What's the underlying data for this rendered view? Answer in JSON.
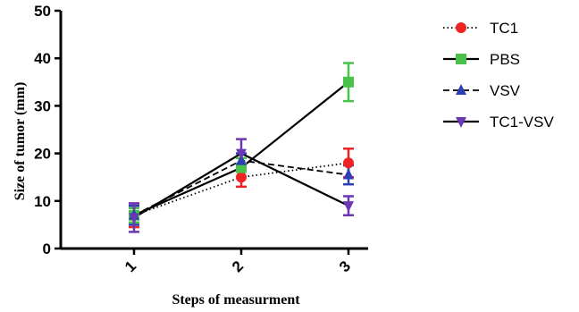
{
  "chart_data": {
    "type": "line",
    "title": "",
    "xlabel": "Steps of measurment",
    "ylabel": "Size of tumor (mm)",
    "categories": [
      "1",
      "2",
      "3"
    ],
    "ylim": [
      0,
      50
    ],
    "yticks": [
      0,
      10,
      20,
      30,
      40,
      50
    ],
    "grid": false,
    "legend_position": "right",
    "series": [
      {
        "name": "TC1",
        "values": [
          7,
          15,
          18
        ],
        "errors": [
          2.5,
          2,
          3
        ],
        "color": "#ee2424",
        "marker": "circle",
        "line_style": "dotted"
      },
      {
        "name": "PBS",
        "values": [
          7,
          17,
          35
        ],
        "errors": [
          1.5,
          2,
          4
        ],
        "color": "#4ac14a",
        "marker": "square",
        "line_style": "solid"
      },
      {
        "name": "VSV",
        "values": [
          7,
          18.5,
          15.5
        ],
        "errors": [
          2,
          1.5,
          2
        ],
        "color": "#2b3eb5",
        "marker": "triangle-up",
        "line_style": "dashed"
      },
      {
        "name": "TC1-VSV",
        "values": [
          6.5,
          20,
          9
        ],
        "errors": [
          3,
          3,
          2
        ],
        "color": "#6a38b4",
        "marker": "triangle-down",
        "line_style": "solid"
      }
    ]
  }
}
